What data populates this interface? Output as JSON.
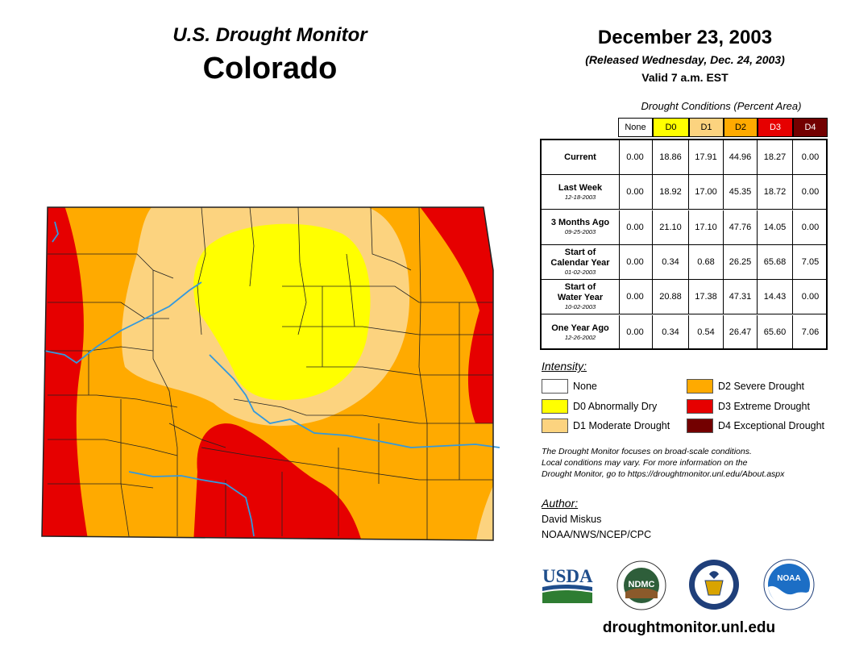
{
  "header": {
    "product": "U.S. Drought Monitor",
    "state": "Colorado",
    "date": "December 23, 2003",
    "released": "(Released Wednesday, Dec. 24, 2003)",
    "valid": "Valid 7 a.m. EST"
  },
  "table": {
    "caption": "Drought Conditions (Percent Area)",
    "columns": [
      {
        "label": "None",
        "color": "#ffffff",
        "text": "#000000"
      },
      {
        "label": "D0",
        "color": "#ffff00",
        "text": "#000000"
      },
      {
        "label": "D1",
        "color": "#fcd37f",
        "text": "#000000"
      },
      {
        "label": "D2",
        "color": "#ffaa00",
        "text": "#000000"
      },
      {
        "label": "D3",
        "color": "#e60000",
        "text": "#ffffff"
      },
      {
        "label": "D4",
        "color": "#730000",
        "text": "#ffffff"
      }
    ],
    "rows": [
      {
        "label": "Current",
        "label2": "",
        "date": "",
        "values": [
          "0.00",
          "18.86",
          "17.91",
          "44.96",
          "18.27",
          "0.00"
        ]
      },
      {
        "label": "Last Week",
        "label2": "",
        "date": "12-18-2003",
        "values": [
          "0.00",
          "18.92",
          "17.00",
          "45.35",
          "18.72",
          "0.00"
        ]
      },
      {
        "label": "3 Months Ago",
        "label2": "",
        "date": "09-25-2003",
        "values": [
          "0.00",
          "21.10",
          "17.10",
          "47.76",
          "14.05",
          "0.00"
        ]
      },
      {
        "label": "Start of",
        "label2": "Calendar Year",
        "date": "01-02-2003",
        "values": [
          "0.00",
          "0.34",
          "0.68",
          "26.25",
          "65.68",
          "7.05"
        ]
      },
      {
        "label": "Start of",
        "label2": "Water Year",
        "date": "10-02-2003",
        "values": [
          "0.00",
          "20.88",
          "17.38",
          "47.31",
          "14.43",
          "0.00"
        ]
      },
      {
        "label": "One Year Ago",
        "label2": "",
        "date": "12-26-2002",
        "values": [
          "0.00",
          "0.34",
          "0.54",
          "26.47",
          "65.60",
          "7.06"
        ]
      }
    ]
  },
  "legend": {
    "title": "Intensity:",
    "items": [
      {
        "label": "None",
        "color": "#ffffff"
      },
      {
        "label": "D0 Abnormally Dry",
        "color": "#ffff00"
      },
      {
        "label": "D1 Moderate Drought",
        "color": "#fcd37f"
      },
      {
        "label": "D2 Severe Drought",
        "color": "#ffaa00"
      },
      {
        "label": "D3 Extreme Drought",
        "color": "#e60000"
      },
      {
        "label": "D4 Exceptional Drought",
        "color": "#730000"
      }
    ]
  },
  "note": {
    "line1": "The Drought Monitor focuses on broad-scale conditions.",
    "line2": "Local conditions may vary. For more information on the",
    "line3": "Drought Monitor, go to https://droughtmonitor.unl.edu/About.aspx"
  },
  "author": {
    "title": "Author:",
    "name": "David Miskus",
    "org": "NOAA/NWS/NCEP/CPC"
  },
  "logos": {
    "usda": "USDA",
    "ndmc": "NDMC",
    "noaa": "NOAA"
  },
  "footer": {
    "url": "droughtmonitor.unl.edu"
  },
  "map_colors": {
    "none": "#ffffff",
    "d0": "#ffff00",
    "d1": "#fcd37f",
    "d2": "#ffaa00",
    "d3": "#e60000",
    "d4": "#730000",
    "river": "#3399dd",
    "boundary": "#222222"
  }
}
